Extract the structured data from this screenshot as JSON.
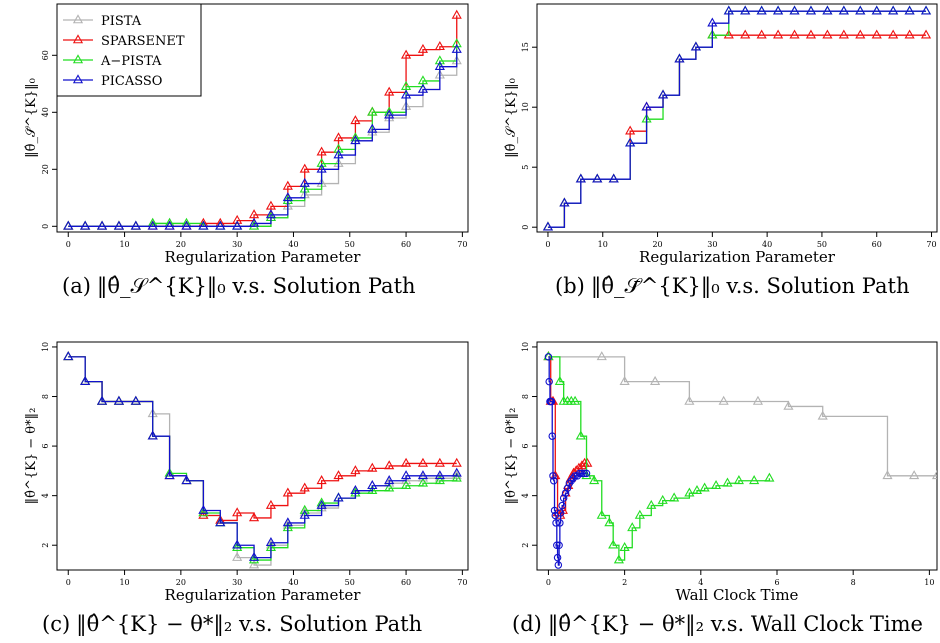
{
  "figure": {
    "captions": [
      {
        "tag": "(a)",
        "math": "‖θ̂_𝒮^{K}‖₀",
        "rest": "v.s. Solution Path"
      },
      {
        "tag": "(b)",
        "math": "‖θ̂_𝒮̄^{K}‖₀",
        "rest": "v.s. Solution Path"
      },
      {
        "tag": "(c)",
        "math": "‖θ̂^{K} − θ*‖₂",
        "rest": "v.s. Solution Path"
      },
      {
        "tag": "(d)",
        "math": "‖θ̂^{K} − θ*‖₂",
        "rest": "v.s. Wall Clock Time"
      }
    ]
  },
  "colors": {
    "PISTA": "#b3b3b3",
    "SPARSENET": "#ee1111",
    "A-PISTA": "#22dd22",
    "PICASSO": "#1111cc"
  },
  "chart_data": [
    {
      "type": "line",
      "xlabel": "Regularization Parameter",
      "ylabel": "‖θ̂_𝒮̄^{K}‖₀",
      "xlim": [
        -2,
        71
      ],
      "ylim": [
        -2,
        78
      ],
      "xticks": [
        0,
        10,
        20,
        30,
        40,
        50,
        60,
        70
      ],
      "yticks": [
        0,
        20,
        40,
        60
      ],
      "legend": {
        "position": "top-left",
        "entries": [
          "PISTA",
          "SPARSENET",
          "A−PISTA",
          "PICASSO"
        ]
      },
      "series": [
        {
          "name": "PISTA",
          "markers": "triangle",
          "x": [
            0,
            3,
            6,
            9,
            12,
            15,
            18,
            21,
            24,
            27,
            30,
            33,
            36,
            39,
            42,
            45,
            48,
            51,
            54,
            57,
            60,
            63,
            66,
            69
          ],
          "y": [
            0,
            0,
            0,
            0,
            0,
            1,
            1,
            0,
            0,
            0,
            0,
            0,
            3,
            7,
            11,
            15,
            22,
            30,
            33,
            38,
            42,
            48,
            53,
            58
          ]
        },
        {
          "name": "SPARSENET",
          "markers": "triangle",
          "x": [
            0,
            3,
            6,
            9,
            12,
            15,
            18,
            21,
            24,
            27,
            30,
            33,
            36,
            39,
            42,
            45,
            48,
            51,
            54,
            57,
            60,
            63,
            66,
            69
          ],
          "y": [
            0,
            0,
            0,
            0,
            0,
            0,
            0,
            0,
            1,
            1,
            2,
            4,
            7,
            14,
            20,
            26,
            31,
            37,
            40,
            47,
            60,
            62,
            63,
            74
          ]
        },
        {
          "name": "A-PISTA",
          "markers": "triangle",
          "x": [
            0,
            3,
            6,
            9,
            12,
            15,
            18,
            21,
            24,
            27,
            30,
            33,
            36,
            39,
            42,
            45,
            48,
            51,
            54,
            57,
            60,
            63,
            66,
            69
          ],
          "y": [
            0,
            0,
            0,
            0,
            0,
            1,
            1,
            1,
            0,
            0,
            0,
            0,
            3,
            9,
            13,
            22,
            27,
            31,
            40,
            40,
            49,
            51,
            58,
            64
          ]
        },
        {
          "name": "PICASSO",
          "markers": "triangle",
          "x": [
            0,
            3,
            6,
            9,
            12,
            15,
            18,
            21,
            24,
            27,
            30,
            33,
            36,
            39,
            42,
            45,
            48,
            51,
            54,
            57,
            60,
            63,
            66,
            69
          ],
          "y": [
            0,
            0,
            0,
            0,
            0,
            0,
            0,
            0,
            0,
            0,
            0,
            1,
            4,
            10,
            15,
            20,
            25,
            30,
            34,
            39,
            46,
            48,
            56,
            62
          ]
        }
      ]
    },
    {
      "type": "line",
      "xlabel": "Regularization Parameter",
      "ylabel": "‖θ̂_𝒮^{K}‖₀",
      "xlim": [
        -2,
        71
      ],
      "ylim": [
        -0.4,
        18.6
      ],
      "xticks": [
        0,
        10,
        20,
        30,
        40,
        50,
        60,
        70
      ],
      "yticks": [
        0,
        5,
        10,
        15
      ],
      "series": [
        {
          "name": "SPARSENET",
          "markers": "triangle",
          "x": [
            0,
            3,
            6,
            9,
            12,
            15,
            18,
            21,
            24,
            27,
            30,
            33,
            36,
            39,
            42,
            45,
            48,
            51,
            54,
            57,
            60,
            63,
            66,
            69
          ],
          "y": [
            0,
            2,
            4,
            4,
            4,
            8,
            10,
            11,
            14,
            15,
            16,
            16,
            16,
            16,
            16,
            16,
            16,
            16,
            16,
            16,
            16,
            16,
            16,
            16
          ]
        },
        {
          "name": "A-PISTA",
          "markers": "triangle",
          "x": [
            0,
            3,
            6,
            9,
            12,
            15,
            18,
            21,
            24,
            27,
            30,
            33,
            36,
            39,
            42,
            45,
            48,
            51,
            54,
            57,
            60,
            63,
            66,
            69
          ],
          "y": [
            0,
            2,
            4,
            4,
            4,
            7,
            9,
            11,
            14,
            15,
            16,
            18,
            18,
            18,
            18,
            18,
            18,
            18,
            18,
            18,
            18,
            18,
            18,
            18
          ]
        },
        {
          "name": "PICASSO",
          "markers": "triangle",
          "x": [
            0,
            3,
            6,
            9,
            12,
            15,
            18,
            21,
            24,
            27,
            30,
            33,
            36,
            39,
            42,
            45,
            48,
            51,
            54,
            57,
            60,
            63,
            66,
            69
          ],
          "y": [
            0,
            2,
            4,
            4,
            4,
            7,
            10,
            11,
            14,
            15,
            17,
            18,
            18,
            18,
            18,
            18,
            18,
            18,
            18,
            18,
            18,
            18,
            18,
            18
          ]
        }
      ]
    },
    {
      "type": "line",
      "xlabel": "Regularization Parameter",
      "ylabel": "‖θ̂^{K} − θ*‖₂",
      "xlim": [
        -2,
        71
      ],
      "ylim": [
        1,
        10.2
      ],
      "xticks": [
        0,
        10,
        20,
        30,
        40,
        50,
        60,
        70
      ],
      "yticks": [
        2,
        4,
        6,
        8,
        10
      ],
      "series": [
        {
          "name": "PISTA",
          "markers": "triangle",
          "x": [
            0,
            3,
            6,
            9,
            12,
            15,
            18,
            21,
            24,
            27,
            30,
            33,
            36,
            39,
            42,
            45,
            48,
            51,
            54,
            57,
            60,
            63,
            66,
            69
          ],
          "y": [
            9.6,
            8.6,
            7.8,
            7.8,
            7.8,
            7.3,
            4.8,
            4.6,
            3.2,
            2.9,
            1.5,
            1.2,
            2.0,
            2.8,
            3.3,
            3.5,
            3.9,
            4.2,
            4.4,
            4.5,
            4.6,
            4.7,
            4.7,
            4.8
          ]
        },
        {
          "name": "SPARSENET",
          "markers": "triangle",
          "x": [
            0,
            3,
            6,
            9,
            12,
            15,
            18,
            21,
            24,
            27,
            30,
            33,
            36,
            39,
            42,
            45,
            48,
            51,
            54,
            57,
            60,
            63,
            66,
            69
          ],
          "y": [
            9.6,
            8.6,
            7.8,
            7.8,
            7.8,
            6.4,
            4.8,
            4.6,
            3.2,
            3.0,
            3.3,
            3.1,
            3.6,
            4.1,
            4.3,
            4.6,
            4.8,
            5.0,
            5.1,
            5.2,
            5.3,
            5.3,
            5.3,
            5.3
          ]
        },
        {
          "name": "A-PISTA",
          "markers": "triangle",
          "x": [
            0,
            3,
            6,
            9,
            12,
            15,
            18,
            21,
            24,
            27,
            30,
            33,
            36,
            39,
            42,
            45,
            48,
            51,
            54,
            57,
            60,
            63,
            66,
            69
          ],
          "y": [
            9.6,
            8.6,
            7.8,
            7.8,
            7.8,
            6.4,
            4.9,
            4.6,
            3.3,
            2.9,
            1.9,
            1.4,
            1.9,
            2.7,
            3.4,
            3.7,
            3.9,
            4.1,
            4.2,
            4.3,
            4.4,
            4.5,
            4.6,
            4.7
          ]
        },
        {
          "name": "PICASSO",
          "markers": "triangle",
          "x": [
            0,
            3,
            6,
            9,
            12,
            15,
            18,
            21,
            24,
            27,
            30,
            33,
            36,
            39,
            42,
            45,
            48,
            51,
            54,
            57,
            60,
            63,
            66,
            69
          ],
          "y": [
            9.6,
            8.6,
            7.8,
            7.8,
            7.8,
            6.4,
            4.8,
            4.6,
            3.4,
            2.9,
            2.0,
            1.5,
            2.1,
            2.9,
            3.2,
            3.6,
            3.9,
            4.2,
            4.4,
            4.6,
            4.8,
            4.8,
            4.8,
            4.9
          ]
        }
      ]
    },
    {
      "type": "line",
      "xlabel": "Wall Clock Time",
      "ylabel": "‖θ̂^{K} − θ*‖₂",
      "xlim": [
        -0.3,
        10.2
      ],
      "ylim": [
        1,
        10.2
      ],
      "xticks": [
        0,
        2,
        4,
        6,
        8,
        10
      ],
      "yticks": [
        2,
        4,
        6,
        8,
        10
      ],
      "series": [
        {
          "name": "PISTA",
          "markers": "triangle",
          "x": [
            0,
            1.4,
            2.0,
            2.8,
            3.7,
            4.6,
            5.5,
            6.3,
            7.2,
            8.9,
            9.6,
            10.2
          ],
          "y": [
            9.6,
            9.6,
            8.6,
            8.6,
            7.8,
            7.8,
            7.8,
            7.6,
            7.2,
            4.8,
            4.8,
            4.8
          ]
        },
        {
          "name": "SPARSENET",
          "markers": "triangle",
          "x": [
            0,
            0.06,
            0.12,
            0.18,
            0.24,
            0.31,
            0.38,
            0.45,
            0.52,
            0.59,
            0.66,
            0.73,
            0.8,
            0.88,
            0.95,
            1.02
          ],
          "y": [
            9.6,
            7.8,
            7.8,
            4.8,
            3.3,
            3.2,
            3.4,
            4.1,
            4.4,
            4.7,
            4.9,
            5.0,
            5.1,
            5.2,
            5.3,
            5.3
          ]
        },
        {
          "name": "A-PISTA",
          "markers": "triangle",
          "x": [
            0,
            0.3,
            0.4,
            0.5,
            0.6,
            0.7,
            0.85,
            1.0,
            1.2,
            1.4,
            1.6,
            1.7,
            1.85,
            2.0,
            2.2,
            2.4,
            2.7,
            3.0,
            3.3,
            3.7,
            3.9,
            4.1,
            4.4,
            4.7,
            5.0,
            5.4,
            5.8
          ],
          "y": [
            9.6,
            8.6,
            7.8,
            7.8,
            7.8,
            7.8,
            6.4,
            4.8,
            4.6,
            3.2,
            2.9,
            2.0,
            1.4,
            1.9,
            2.7,
            3.2,
            3.6,
            3.8,
            3.9,
            4.1,
            4.2,
            4.3,
            4.4,
            4.5,
            4.6,
            4.6,
            4.7
          ]
        },
        {
          "name": "PICASSO",
          "markers": "circle",
          "x": [
            0,
            0.02,
            0.04,
            0.06,
            0.08,
            0.1,
            0.12,
            0.14,
            0.16,
            0.18,
            0.2,
            0.22,
            0.24,
            0.26,
            0.28,
            0.3,
            0.32,
            0.36,
            0.4,
            0.45,
            0.5,
            0.55,
            0.6,
            0.65,
            0.7,
            0.76,
            0.82,
            0.88,
            0.94,
            1.0
          ],
          "y": [
            9.6,
            8.6,
            7.8,
            7.8,
            7.8,
            6.4,
            4.8,
            4.6,
            3.4,
            3.2,
            2.9,
            2.0,
            1.5,
            1.2,
            2.0,
            2.9,
            3.3,
            3.6,
            3.9,
            4.1,
            4.3,
            4.5,
            4.6,
            4.7,
            4.8,
            4.8,
            4.9,
            4.9,
            4.9,
            4.9
          ]
        }
      ]
    }
  ]
}
